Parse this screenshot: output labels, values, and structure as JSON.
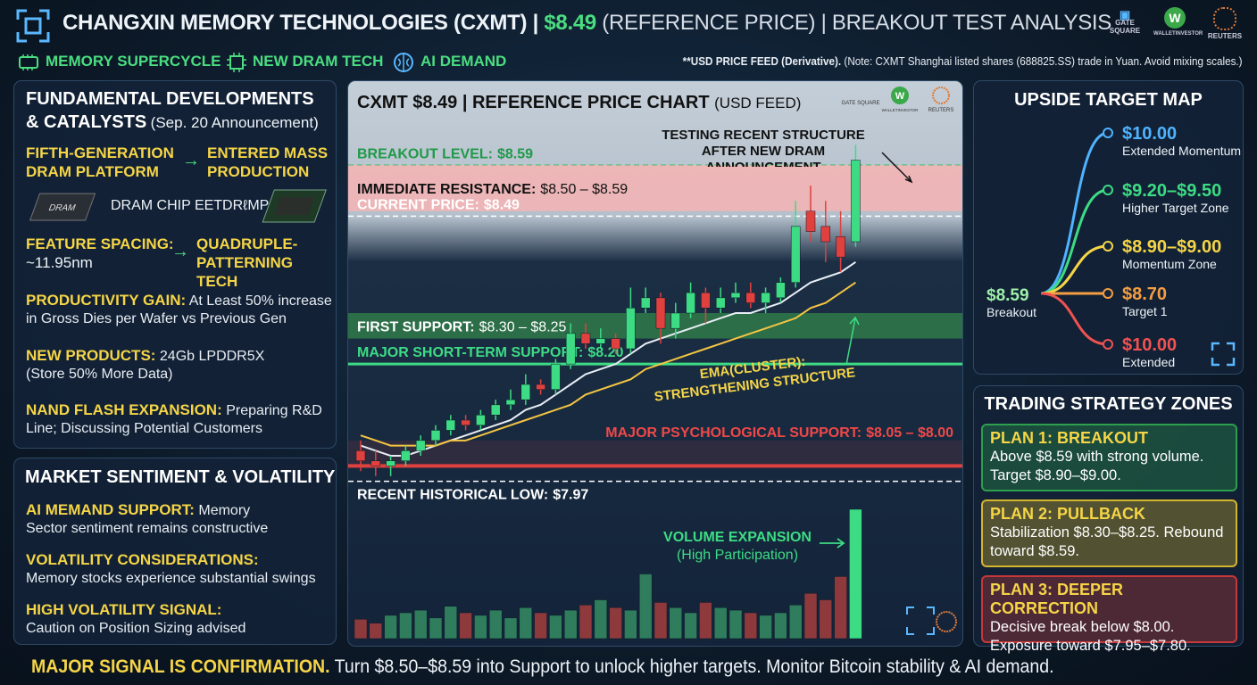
{
  "header": {
    "title": "CHANGXIN MEMORY TECHNOLOGIES (CXMT)",
    "separator": "|",
    "price": "$8.49",
    "price_note": "(REFERENCE PRICE)",
    "subtitle": "| BREAKOUT TEST ANALYSIS",
    "sources": [
      "GATE SQUARE",
      "WALLETINVESTOR",
      "REUTERS"
    ],
    "source_icon": "W"
  },
  "tags": [
    "MEMORY SUPERCYCLE",
    "NEW DRAM TECH",
    "AI DEMAND"
  ],
  "note": {
    "lead": "**USD PRICE FEED (Derivative).",
    "text": "(Note: CXMT Shanghai listed shares (688825.SS) trade in Yuan. Avoid mixing scales.)"
  },
  "fundamentals": {
    "title": "FUNDAMENTAL DEVELOPMENTS & CATALYSTS",
    "subtitle": "(Sep. 20 Announcement)",
    "platform": {
      "from": "FIFTH-GENERATION DRAM PLATFORM",
      "to": "ENTERED MASS PRODUCTION"
    },
    "chip": {
      "mark": "DRAM",
      "caption": "DRAM CHIP EETDRℓMP"
    },
    "spacing": {
      "label": "FEATURE SPACING:",
      "value": "~11.95nm",
      "to": "QUADRUPLE-PATTERNING TECH"
    },
    "items": [
      {
        "label": "PRODUCTIVITY GAIN:",
        "text": "At Least 50% increase in Gross Dies per Wafer vs Previous Gen"
      },
      {
        "label": "NEW PRODUCTS:",
        "text": "24Gb LPDDR5X (Store 50% More Data)"
      },
      {
        "label": "NAND FLASH EXPANSION:",
        "text": "Preparing R&D Line; Discussing Potential Customers"
      }
    ]
  },
  "sentiment": {
    "title": "MARKET SENTIMENT & VOLATILITY",
    "items": [
      {
        "label": "AI MEMAND SUPPORT:",
        "text": "Memory Sector sentiment remains constructive"
      },
      {
        "label": "VOLATILITY CONSIDERATIONS:",
        "text": "Memory stocks experience substantial swings"
      },
      {
        "label": "HIGH VOLATILITY SIGNAL:",
        "text": "Caution on Position Sizing advised"
      }
    ]
  },
  "chart_data": {
    "type": "candlestick",
    "title": "CXMT $8.49 | REFERENCE PRICE CHART",
    "subtitle": "(USD FEED)",
    "ylim": [
      7.95,
      8.65
    ],
    "up_color": "#3ddc84",
    "down_color": "#e0413f",
    "candles": [
      {
        "open": 8.03,
        "high": 8.05,
        "low": 7.99,
        "close": 8.01
      },
      {
        "open": 8.01,
        "high": 8.03,
        "low": 7.98,
        "close": 8.0
      },
      {
        "open": 8.0,
        "high": 8.02,
        "low": 7.98,
        "close": 8.01
      },
      {
        "open": 8.01,
        "high": 8.04,
        "low": 8.0,
        "close": 8.03
      },
      {
        "open": 8.03,
        "high": 8.06,
        "low": 8.02,
        "close": 8.05
      },
      {
        "open": 8.05,
        "high": 8.08,
        "low": 8.04,
        "close": 8.07
      },
      {
        "open": 8.07,
        "high": 8.1,
        "low": 8.06,
        "close": 8.09
      },
      {
        "open": 8.09,
        "high": 8.1,
        "low": 8.07,
        "close": 8.08
      },
      {
        "open": 8.08,
        "high": 8.11,
        "low": 8.07,
        "close": 8.1
      },
      {
        "open": 8.1,
        "high": 8.13,
        "low": 8.09,
        "close": 8.12
      },
      {
        "open": 8.12,
        "high": 8.15,
        "low": 8.11,
        "close": 8.13
      },
      {
        "open": 8.13,
        "high": 8.18,
        "low": 8.12,
        "close": 8.16
      },
      {
        "open": 8.16,
        "high": 8.17,
        "low": 8.14,
        "close": 8.15
      },
      {
        "open": 8.15,
        "high": 8.21,
        "low": 8.14,
        "close": 8.2
      },
      {
        "open": 8.2,
        "high": 8.28,
        "low": 8.19,
        "close": 8.26
      },
      {
        "open": 8.26,
        "high": 8.28,
        "low": 8.23,
        "close": 8.24
      },
      {
        "open": 8.24,
        "high": 8.27,
        "low": 8.23,
        "close": 8.25
      },
      {
        "open": 8.25,
        "high": 8.26,
        "low": 8.22,
        "close": 8.23
      },
      {
        "open": 8.23,
        "high": 8.35,
        "low": 8.22,
        "close": 8.31
      },
      {
        "open": 8.31,
        "high": 8.35,
        "low": 8.3,
        "close": 8.33
      },
      {
        "open": 8.33,
        "high": 8.34,
        "low": 8.24,
        "close": 8.27
      },
      {
        "open": 8.27,
        "high": 8.32,
        "low": 8.25,
        "close": 8.3
      },
      {
        "open": 8.3,
        "high": 8.36,
        "low": 8.29,
        "close": 8.34
      },
      {
        "open": 8.34,
        "high": 8.35,
        "low": 8.28,
        "close": 8.31
      },
      {
        "open": 8.31,
        "high": 8.35,
        "low": 8.3,
        "close": 8.33
      },
      {
        "open": 8.33,
        "high": 8.36,
        "low": 8.32,
        "close": 8.34
      },
      {
        "open": 8.34,
        "high": 8.36,
        "low": 8.31,
        "close": 8.32
      },
      {
        "open": 8.32,
        "high": 8.35,
        "low": 8.3,
        "close": 8.34
      },
      {
        "open": 8.33,
        "high": 8.37,
        "low": 8.32,
        "close": 8.36
      },
      {
        "open": 8.36,
        "high": 8.52,
        "low": 8.35,
        "close": 8.47
      },
      {
        "open": 8.5,
        "high": 8.55,
        "low": 8.44,
        "close": 8.46
      },
      {
        "open": 8.47,
        "high": 8.52,
        "low": 8.4,
        "close": 8.44
      },
      {
        "open": 8.45,
        "high": 8.5,
        "low": 8.38,
        "close": 8.41
      },
      {
        "open": 8.44,
        "high": 8.63,
        "low": 8.43,
        "close": 8.6
      }
    ],
    "ema": [
      {
        "color": "#e8eef5",
        "values": [
          8.04,
          8.03,
          8.02,
          8.02,
          8.03,
          8.04,
          8.05,
          8.06,
          8.07,
          8.08,
          8.09,
          8.11,
          8.12,
          8.14,
          8.16,
          8.18,
          8.19,
          8.2,
          8.22,
          8.24,
          8.25,
          8.26,
          8.27,
          8.28,
          8.29,
          8.3,
          8.3,
          8.31,
          8.32,
          8.34,
          8.36,
          8.37,
          8.38,
          8.4
        ]
      },
      {
        "color": "#f5c542",
        "values": [
          8.06,
          8.05,
          8.04,
          8.04,
          8.04,
          8.04,
          8.05,
          8.05,
          8.06,
          8.07,
          8.08,
          8.09,
          8.1,
          8.11,
          8.12,
          8.14,
          8.15,
          8.16,
          8.17,
          8.19,
          8.2,
          8.21,
          8.22,
          8.23,
          8.24,
          8.25,
          8.26,
          8.27,
          8.28,
          8.29,
          8.31,
          8.32,
          8.34,
          8.36
        ]
      }
    ],
    "volume": {
      "vlim": [
        0,
        100
      ],
      "values": [
        15,
        12,
        18,
        20,
        22,
        16,
        25,
        20,
        18,
        22,
        16,
        24,
        20,
        18,
        22,
        26,
        30,
        24,
        22,
        50,
        28,
        24,
        20,
        28,
        24,
        22,
        20,
        18,
        20,
        26,
        35,
        30,
        48,
        100
      ]
    },
    "levels": [
      {
        "name": "BREAKOUT LEVEL:",
        "price": "$8.59",
        "value": 8.59,
        "style": "dashed",
        "color": "#2fbf5f"
      },
      {
        "name": "IMMEDIATE RESISTANCE:",
        "price": "$8.50 – $8.59",
        "range": [
          8.5,
          8.59
        ],
        "style": "band",
        "color": "#f6b3b3"
      },
      {
        "name": "CURRENT PRICE:",
        "price": "$8.49",
        "value": 8.49,
        "style": "dashed",
        "color": "#ffffff"
      },
      {
        "name": "FIRST SUPPORT:",
        "price": "$8.30 – $8.25",
        "range": [
          8.3,
          8.25
        ],
        "style": "band",
        "color": "#2f7a48"
      },
      {
        "name": "MAJOR SHORT-TERM SUPPORT:",
        "price": "$8.20",
        "value": 8.2,
        "style": "line",
        "color": "#3ddc84"
      },
      {
        "name": "MAJOR PSYCHOLOGICAL SUPPORT:",
        "price": "$8.05 – $8.00",
        "range": [
          8.05,
          8.0
        ],
        "style": "line",
        "color": "#e0413f"
      },
      {
        "name": "RECENT HISTORICAL LOW:",
        "price": "$7.97",
        "value": 7.97,
        "style": "dashed",
        "color": "#ffffff"
      }
    ],
    "annotations": {
      "structure": "TESTING RECENT STRUCTURE AFTER NEW DRAM ANNOUNCEMENT",
      "ema": "EMA(CLUSTER): STRENGTHENING STRUCTURE",
      "volume": "VOLUME EXPANSION",
      "volume_note": "(High Participation)"
    }
  },
  "targets": {
    "title": "UPSIDE TARGET MAP",
    "origin": {
      "price": "$8.59",
      "label": "Breakout"
    },
    "items": [
      {
        "price": "$10.00",
        "label": "Extended Momentum",
        "color": "#4fb3ff"
      },
      {
        "price": "$9.20–$9.50",
        "label": "Higher Target Zone",
        "color": "#3ddc84"
      },
      {
        "price": "$8.90–$9.00",
        "label": "Momentum Zone",
        "color": "#f5d547"
      },
      {
        "price": "$8.70",
        "label": "Target 1",
        "color": "#f59e42"
      },
      {
        "price": "$10.00",
        "label": "Extended",
        "color": "#f05252"
      }
    ]
  },
  "strategy": {
    "title": "TRADING STRATEGY ZONES",
    "plans": [
      {
        "title": "PLAN 1: BREAKOUT",
        "text": "Above $8.59 with strong volume. Target $8.90–$9.00.",
        "color": "#2e9e4f"
      },
      {
        "title": "PLAN 2: PULLBACK",
        "text": "Stabilization $8.30–$8.25. Rebound toward $8.59.",
        "color": "#d4b52e"
      },
      {
        "title": "PLAN 3: DEEPER CORRECTION",
        "text": "Decisive break below $8.00. Exposure toward $7.95–$7.80.",
        "color": "#c7383a"
      }
    ]
  },
  "footer": {
    "lead": "MAJOR SIGNAL IS CONFIRMATION.",
    "text": "Turn $8.50–$8.59 into Support to unlock higher targets. Monitor Bitcoin stability & AI demand."
  }
}
